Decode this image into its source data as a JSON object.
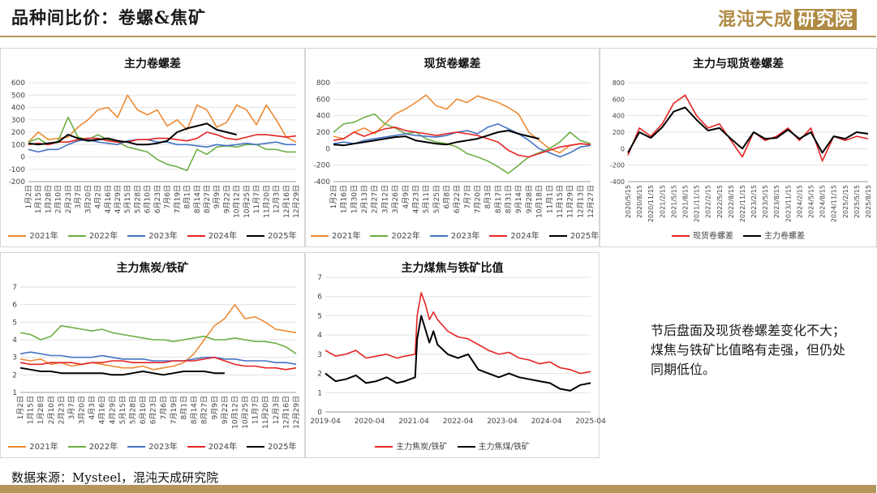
{
  "header": {
    "title": "品种间比价：卷螺&焦矿",
    "logo_text": "混沌天成",
    "logo_box": "研究院"
  },
  "comment": "节后盘面及现货卷螺差变化不大；煤焦与铁矿比值略有走强，但仍处同期低位。",
  "source": "数据来源：Mysteel，混沌天成研究院",
  "colors": {
    "y2021": "#ED8A34",
    "y2022": "#6FAE45",
    "y2023": "#4674C4",
    "y2024": "#E52424",
    "y2025": "#000000",
    "spot": "#E52424",
    "futures": "#000000",
    "gold": "#b5965a"
  },
  "chart_data": [
    {
      "id": "chart1",
      "type": "line",
      "title": "主力卷螺差",
      "ylim": [
        -200,
        600
      ],
      "yticks": [
        -200,
        -100,
        0,
        100,
        200,
        300,
        400,
        500,
        600
      ],
      "x_ticks": [
        "1月2日",
        "1月15日",
        "1月28日",
        "2月10日",
        "2月23日",
        "3月7日",
        "3月20日",
        "4月2日",
        "4月16日",
        "4月29日",
        "5月15日",
        "5月28日",
        "6月10日",
        "6月23日",
        "7月6日",
        "7月19日",
        "8月1日",
        "8月14日",
        "8月27日",
        "9月9日",
        "9月22日",
        "10月12日",
        "10月25日",
        "11月7日",
        "11月20日",
        "12月3日",
        "12月16日",
        "12月29日"
      ],
      "series": [
        {
          "name": "2021年",
          "color_key": "y2021",
          "values": [
            120,
            200,
            140,
            150,
            160,
            240,
            300,
            380,
            400,
            320,
            500,
            380,
            340,
            380,
            250,
            300,
            220,
            420,
            380,
            240,
            280,
            420,
            380,
            260,
            420,
            300,
            160,
            120
          ]
        },
        {
          "name": "2022年",
          "color_key": "y2022",
          "values": [
            120,
            150,
            100,
            130,
            320,
            160,
            140,
            180,
            140,
            120,
            80,
            60,
            40,
            -20,
            -60,
            -80,
            -110,
            60,
            20,
            80,
            90,
            80,
            100,
            100,
            60,
            60,
            40,
            40
          ]
        },
        {
          "name": "2023年",
          "color_key": "y2023",
          "values": [
            60,
            40,
            60,
            60,
            100,
            130,
            140,
            120,
            110,
            100,
            130,
            140,
            140,
            120,
            120,
            100,
            100,
            90,
            80,
            100,
            90,
            100,
            110,
            100,
            110,
            120,
            100,
            100
          ]
        },
        {
          "name": "2024年",
          "color_key": "y2024",
          "values": [
            100,
            110,
            100,
            120,
            120,
            140,
            150,
            150,
            130,
            120,
            120,
            140,
            140,
            150,
            150,
            140,
            130,
            150,
            200,
            180,
            150,
            140,
            160,
            180,
            180,
            170,
            160,
            170
          ]
        },
        {
          "name": "2025年",
          "color_key": "y2025",
          "values": [
            110,
            100,
            110,
            120,
            180,
            150,
            130,
            140,
            150,
            130,
            120,
            100,
            100,
            110,
            130,
            200,
            230,
            250,
            270,
            220,
            200,
            180,
            null,
            null,
            null,
            null,
            null,
            null
          ]
        }
      ]
    },
    {
      "id": "chart2",
      "type": "line",
      "title": "现货卷螺差",
      "ylim": [
        -400,
        800
      ],
      "yticks": [
        -400,
        -200,
        0,
        200,
        400,
        600,
        800
      ],
      "x_ticks": [
        "1月2日",
        "1月16日",
        "1月30日",
        "2月13日",
        "2月27日",
        "3月12日",
        "3月26日",
        "4月9日",
        "4月23日",
        "5月11日",
        "5月25日",
        "6月8日",
        "6月22日",
        "7月7日",
        "7月20日",
        "8月3日",
        "8月17日",
        "8月31日",
        "9月14日",
        "9月28日",
        "10月18日",
        "11月1日",
        "11月15日",
        "11月29日",
        "12月13日",
        "12月27日"
      ],
      "series": [
        {
          "name": "2021年",
          "color_key": "y2021",
          "values": [
            150,
            120,
            200,
            250,
            180,
            300,
            420,
            480,
            560,
            650,
            520,
            480,
            600,
            560,
            640,
            600,
            560,
            500,
            420,
            200,
            100,
            0,
            -50,
            40,
            60,
            50
          ]
        },
        {
          "name": "2022年",
          "color_key": "y2022",
          "values": [
            200,
            300,
            320,
            380,
            420,
            300,
            250,
            180,
            200,
            120,
            80,
            60,
            20,
            -60,
            -100,
            -150,
            -220,
            -300,
            -200,
            -100,
            -50,
            0,
            80,
            200,
            100,
            60
          ]
        },
        {
          "name": "2023年",
          "color_key": "y2023",
          "values": [
            60,
            80,
            60,
            100,
            120,
            140,
            160,
            180,
            160,
            150,
            140,
            160,
            200,
            220,
            180,
            260,
            300,
            240,
            180,
            100,
            0,
            -50,
            -100,
            -50,
            20,
            40
          ]
        },
        {
          "name": "2024年",
          "color_key": "y2024",
          "values": [
            100,
            120,
            200,
            150,
            200,
            240,
            260,
            220,
            200,
            180,
            160,
            180,
            200,
            180,
            160,
            120,
            80,
            -20,
            -80,
            -100,
            -60,
            -20,
            20,
            40,
            60,
            50
          ]
        },
        {
          "name": "2025年",
          "color_key": "y2025",
          "values": [
            50,
            40,
            60,
            80,
            100,
            120,
            140,
            150,
            100,
            80,
            60,
            50,
            80,
            100,
            120,
            160,
            200,
            220,
            180,
            150,
            120,
            null,
            null,
            null,
            null,
            null
          ]
        }
      ]
    },
    {
      "id": "chart3",
      "type": "line",
      "title": "主力与现货卷螺差",
      "ylim": [
        -400,
        800
      ],
      "yticks": [
        -400,
        -200,
        0,
        200,
        400,
        600,
        800
      ],
      "x_ticks": [
        "2020/5/15",
        "2020/8/15",
        "2020/11/15",
        "2021/2/15",
        "2021/5/15",
        "2021/8/15",
        "2021/11/15",
        "2022/2/15",
        "2022/5/15",
        "2022/8/15",
        "2022/11/15",
        "2023/2/15",
        "2023/5/15",
        "2023/8/15",
        "2023/11/15",
        "2024/2/15",
        "2024/5/15",
        "2024/8/15",
        "2024/11/15",
        "2025/2/15",
        "2025/5/15",
        "2025/8/15"
      ],
      "series": [
        {
          "name": "现货卷螺差",
          "color_key": "spot",
          "values": [
            -80,
            250,
            150,
            300,
            550,
            650,
            400,
            250,
            300,
            100,
            -100,
            200,
            100,
            150,
            250,
            100,
            250,
            -150,
            150,
            100,
            150,
            120
          ]
        },
        {
          "name": "主力卷螺差",
          "color_key": "futures",
          "values": [
            -50,
            200,
            130,
            260,
            450,
            500,
            350,
            220,
            250,
            120,
            0,
            200,
            120,
            130,
            230,
            120,
            200,
            -50,
            150,
            120,
            200,
            180
          ]
        }
      ]
    },
    {
      "id": "chart4",
      "type": "line",
      "title": "主力焦炭/铁矿",
      "ylim": [
        1,
        7
      ],
      "yticks": [
        1,
        2,
        3,
        4,
        5,
        6,
        7
      ],
      "x_ticks": [
        "1月2日",
        "1月15日",
        "1月28日",
        "2月10日",
        "2月23日",
        "3月7日",
        "3月20日",
        "4月3日",
        "4月16日",
        "4月29日",
        "5月15日",
        "5月28日",
        "6月10日",
        "6月23日",
        "7月6日",
        "7月19日",
        "8月1日",
        "8月14日",
        "8月27日",
        "9月9日",
        "9月22日",
        "10月12日",
        "10月25日",
        "11月7日",
        "11月20日",
        "12月3日",
        "12月16日",
        "12月29日"
      ],
      "series": [
        {
          "name": "2021年",
          "color_key": "y2021",
          "values": [
            2.9,
            2.8,
            2.9,
            2.6,
            2.7,
            2.5,
            2.6,
            2.7,
            2.6,
            2.5,
            2.4,
            2.4,
            2.5,
            2.3,
            2.4,
            2.5,
            2.7,
            3.2,
            4.0,
            4.8,
            5.2,
            6.0,
            5.2,
            5.3,
            5.0,
            4.6,
            4.5,
            4.4
          ]
        },
        {
          "name": "2022年",
          "color_key": "y2022",
          "values": [
            4.4,
            4.3,
            4.0,
            4.2,
            4.8,
            4.7,
            4.6,
            4.5,
            4.6,
            4.4,
            4.3,
            4.2,
            4.1,
            4.0,
            4.0,
            3.9,
            4.0,
            4.1,
            4.2,
            4.0,
            4.0,
            4.1,
            4.0,
            3.9,
            3.9,
            3.8,
            3.6,
            3.2
          ]
        },
        {
          "name": "2023年",
          "color_key": "y2023",
          "values": [
            3.2,
            3.3,
            3.2,
            3.1,
            3.1,
            3.0,
            3.0,
            3.0,
            3.1,
            3.0,
            2.9,
            2.9,
            2.9,
            2.8,
            2.8,
            2.8,
            2.8,
            2.9,
            3.0,
            3.0,
            2.9,
            2.9,
            2.8,
            2.8,
            2.8,
            2.7,
            2.7,
            2.6
          ]
        },
        {
          "name": "2024年",
          "color_key": "y2024",
          "values": [
            2.7,
            2.6,
            2.6,
            2.7,
            2.7,
            2.7,
            2.6,
            2.7,
            2.7,
            2.8,
            2.8,
            2.7,
            2.7,
            2.7,
            2.7,
            2.8,
            2.8,
            2.8,
            2.9,
            3.0,
            2.8,
            2.6,
            2.5,
            2.5,
            2.4,
            2.4,
            2.3,
            2.4
          ]
        },
        {
          "name": "2025年",
          "color_key": "y2025",
          "values": [
            2.4,
            2.3,
            2.2,
            2.2,
            2.1,
            2.1,
            2.1,
            2.1,
            2.1,
            2.0,
            2.0,
            2.1,
            2.2,
            2.1,
            2.0,
            2.1,
            2.2,
            2.2,
            2.2,
            2.1,
            2.1,
            null,
            null,
            null,
            null,
            null,
            null,
            null
          ]
        }
      ]
    },
    {
      "id": "chart5",
      "type": "line",
      "title": "主力煤焦与铁矿比值",
      "ylim": [
        0,
        7
      ],
      "yticks": [
        0,
        1,
        2,
        3,
        4,
        5,
        6,
        7
      ],
      "x_ticks": [
        "2019-04",
        "2020-04",
        "2021-04",
        "2022-04",
        "2023-04",
        "2024-04",
        "2025-04"
      ],
      "x_range": [
        2019.25,
        2025.75
      ],
      "series": [
        {
          "name": "主力焦炭/铁矿",
          "color_key": "y2024",
          "x": [
            2019.25,
            2019.5,
            2019.75,
            2020.0,
            2020.25,
            2020.5,
            2020.75,
            2021.0,
            2021.2,
            2021.45,
            2021.5,
            2021.6,
            2021.7,
            2021.8,
            2021.9,
            2022.0,
            2022.25,
            2022.5,
            2022.75,
            2023.0,
            2023.25,
            2023.5,
            2023.75,
            2024.0,
            2024.25,
            2024.5,
            2024.75,
            2025.0,
            2025.25,
            2025.5,
            2025.75
          ],
          "values": [
            3.2,
            2.9,
            3.0,
            3.2,
            2.8,
            2.9,
            3.0,
            2.8,
            2.9,
            3.0,
            5.0,
            6.2,
            5.6,
            4.8,
            5.2,
            4.8,
            4.2,
            3.9,
            3.8,
            3.5,
            3.2,
            3.0,
            3.1,
            2.8,
            2.7,
            2.5,
            2.6,
            2.3,
            2.2,
            2.0,
            2.1
          ]
        },
        {
          "name": "主力焦煤/铁矿",
          "color_key": "y2025",
          "x": [
            2019.25,
            2019.5,
            2019.75,
            2020.0,
            2020.25,
            2020.5,
            2020.75,
            2021.0,
            2021.2,
            2021.45,
            2021.5,
            2021.6,
            2021.7,
            2021.8,
            2021.9,
            2022.0,
            2022.25,
            2022.5,
            2022.75,
            2023.0,
            2023.25,
            2023.5,
            2023.75,
            2024.0,
            2024.25,
            2024.5,
            2024.75,
            2025.0,
            2025.25,
            2025.5,
            2025.75
          ],
          "values": [
            2.0,
            1.6,
            1.7,
            1.9,
            1.5,
            1.6,
            1.8,
            1.5,
            1.6,
            1.8,
            3.8,
            5.0,
            4.3,
            3.6,
            4.2,
            3.5,
            3.0,
            2.8,
            3.0,
            2.2,
            2.0,
            1.8,
            2.0,
            1.8,
            1.7,
            1.6,
            1.5,
            1.2,
            1.1,
            1.4,
            1.5
          ]
        }
      ]
    }
  ]
}
